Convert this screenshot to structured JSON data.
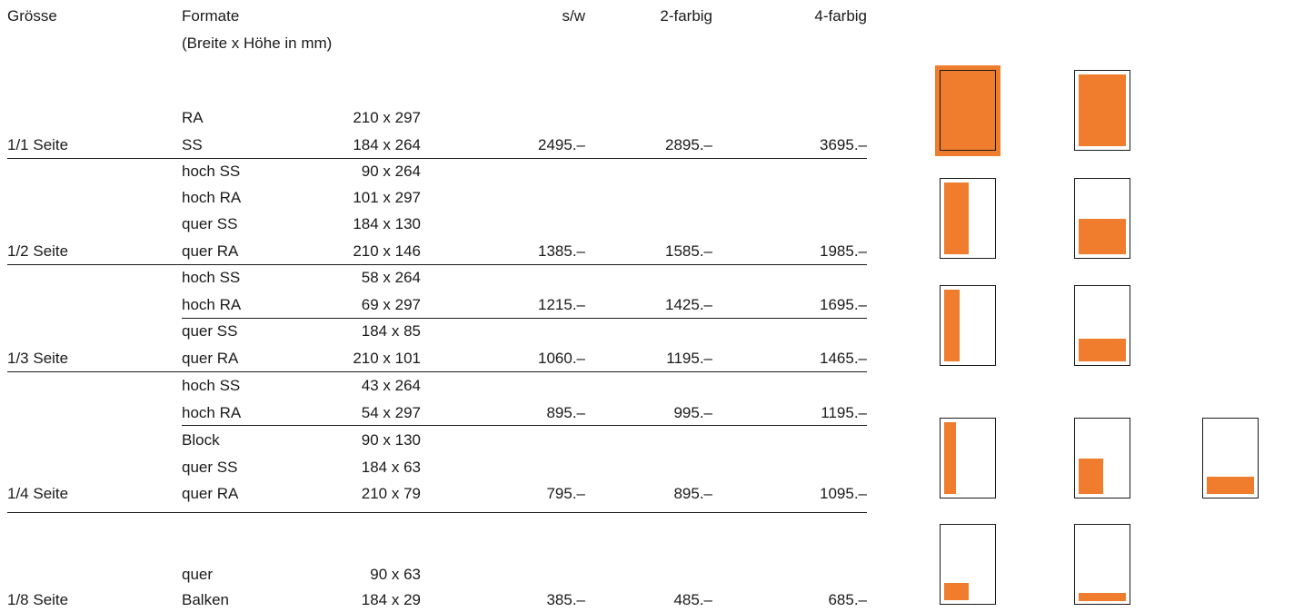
{
  "header": {
    "size": "Grösse",
    "formats": "Formate",
    "formats_sub": "(Breite x Höhe in mm)",
    "bw": "s/w",
    "two_color": "2-farbig",
    "four_color": "4-farbig"
  },
  "rows": {
    "full": {
      "label": "1/1 Seite",
      "f1": {
        "name": "RA",
        "dim": "210 x 297"
      },
      "f2": {
        "name": "SS",
        "dim": "184 x 264"
      },
      "bw": "2495.–",
      "c2": "2895.–",
      "c4": "3695.–"
    },
    "half": {
      "label": "1/2 Seite",
      "f1": {
        "name": "hoch SS",
        "dim": "90 x 264"
      },
      "f2": {
        "name": "hoch RA",
        "dim": "101 x 297"
      },
      "f3": {
        "name": "quer SS",
        "dim": "184 x 130"
      },
      "f4": {
        "name": "quer RA",
        "dim": "210 x 146"
      },
      "bw": "1385.–",
      "c2": "1585.–",
      "c4": "1985.–"
    },
    "third": {
      "label": "1/3 Seite",
      "f1": {
        "name": "hoch SS",
        "dim": "58 x 264"
      },
      "f2": {
        "name": "hoch RA",
        "dim": "69 x 297"
      },
      "bw_a": "1215.–",
      "c2_a": "1425.–",
      "c4_a": "1695.–",
      "f3": {
        "name": "quer SS",
        "dim": "184 x 85"
      },
      "f4": {
        "name": "quer RA",
        "dim": "210 x 101"
      },
      "bw_b": "1060.–",
      "c2_b": "1195.–",
      "c4_b": "1465.–"
    },
    "quarter": {
      "label": "1/4 Seite",
      "f1": {
        "name": "hoch SS",
        "dim": "43 x 264"
      },
      "f2": {
        "name": "hoch RA",
        "dim": "54 x 297"
      },
      "bw_a": "895.–",
      "c2_a": "995.–",
      "c4_a": "1195.–",
      "f3": {
        "name": "Block",
        "dim": "90 x 130"
      },
      "f4": {
        "name": "quer SS",
        "dim": "184 x 63"
      },
      "f5": {
        "name": "quer RA",
        "dim": "210 x 79"
      },
      "bw_b": "795.–",
      "c2_b": "895.–",
      "c4_b": "1095.–"
    },
    "eighth": {
      "label": "1/8 Seite",
      "f1": {
        "name": "quer",
        "dim": "90 x 63"
      },
      "f2": {
        "name": "Balken",
        "dim": "184 x 29"
      },
      "bw": "385.–",
      "c2": "485.–",
      "c4": "685.–"
    }
  },
  "colors": {
    "accent": "#ef7d2d",
    "ink": "#1a1a1a"
  }
}
